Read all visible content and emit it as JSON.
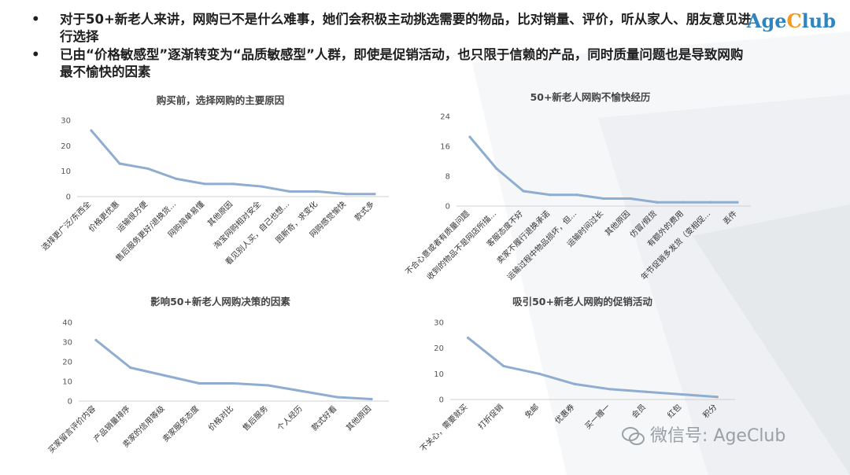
{
  "bullets": [
    "对于50+新老人来讲，网购已不是什么难事，她们会积极主动挑选需要的物品，比对销量、评价，听从家人、朋友意见进行选择",
    "已由“价格敏感型”逐渐转变为“品质敏感型”人群，即使是促销活动，也只限于信赖的产品，同时质量问题也是导致网购最不愉快的因素"
  ],
  "bullet_marker": "•",
  "logo": {
    "part1": "Age",
    "part2": "C",
    "part3": "lub"
  },
  "watermark": "微信号: AgeClub",
  "colors": {
    "line": "#8eadd0",
    "axis": "#d0d0d0",
    "logo_blue": "#2e86c1",
    "logo_orange": "#f29b1d"
  },
  "chart_data": [
    {
      "type": "line",
      "title": "购买前，选择网购的主要原因",
      "categories": [
        "选择更广泛/东西全",
        "价格更优惠",
        "运输很方便",
        "售后服务更好/退换货...",
        "网购简单易懂",
        "其他原因",
        "淘宝网购相对安全",
        "看见别人买，自己也想...",
        "图新奇，求变化",
        "网购感觉愉快",
        "款式多"
      ],
      "values": [
        26,
        13,
        11,
        7,
        5,
        5,
        4,
        2,
        2,
        1,
        1
      ],
      "ylim": [
        0,
        30
      ],
      "yticks": [
        "0",
        "10",
        "20",
        "30"
      ]
    },
    {
      "type": "line",
      "title": "50+新老人网购不愉快经历",
      "categories": [
        "不合心意或者有质量问题",
        "收到的物品不是网店所描...",
        "客服态度不好",
        "卖家不履行退换承诺",
        "运输过程中物品损坏，但...",
        "运输时间过长",
        "其他原因",
        "仿冒/假货",
        "有额外的费用",
        "年节促销多发货（变相促...",
        "丢件"
      ],
      "values": [
        18.5,
        10,
        4,
        3,
        3,
        2,
        2,
        1,
        1,
        1,
        1
      ],
      "ylim": [
        0,
        24
      ],
      "yticks": [
        "0",
        "8",
        "16",
        "24"
      ]
    },
    {
      "type": "line",
      "title": "影响50+新老人网购决策的因素",
      "categories": [
        "买家留言评价内容",
        "产品销量排序",
        "卖家的信用等级",
        "卖家服务态度",
        "价格对比",
        "售后服务",
        "个人经历",
        "款式好看",
        "其他原因"
      ],
      "values": [
        31,
        17,
        13,
        9,
        9,
        8,
        5,
        2,
        1
      ],
      "ylim": [
        0,
        40
      ],
      "yticks": [
        "0",
        "10",
        "20",
        "30",
        "40"
      ]
    },
    {
      "type": "line",
      "title": "吸引50+新老人网购的促销活动",
      "categories": [
        "不关心，需要就买",
        "打折促销",
        "免邮",
        "优惠券",
        "买一赠一",
        "会员",
        "红包",
        "积分"
      ],
      "values": [
        24,
        13,
        10,
        6,
        4,
        3,
        2,
        1
      ],
      "ylim": [
        0,
        30
      ],
      "yticks": [
        "0",
        "10",
        "20",
        "30"
      ]
    }
  ]
}
